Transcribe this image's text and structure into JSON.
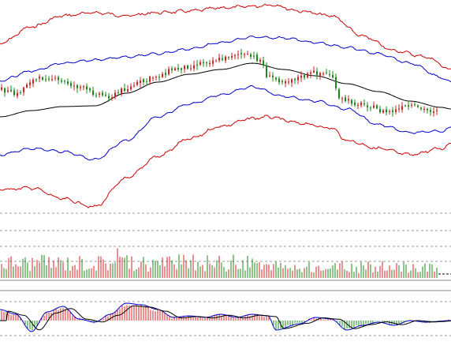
{
  "chart_data": [
    {
      "type": "candlestick",
      "panel": "price",
      "title": "",
      "grid": false,
      "colors": {
        "up": "#d42020",
        "down": "#1a8a1a",
        "ma": "#000000",
        "inner_band": "#0000cc",
        "outer_band": "#cc0000"
      },
      "price_anchor_keys": [
        [
          0,
          113
        ],
        [
          20,
          120
        ],
        [
          40,
          102
        ],
        [
          60,
          98
        ],
        [
          80,
          104
        ],
        [
          100,
          110
        ],
        [
          120,
          118
        ],
        [
          140,
          122
        ],
        [
          160,
          112
        ],
        [
          180,
          104
        ],
        [
          200,
          96
        ],
        [
          220,
          88
        ],
        [
          240,
          84
        ],
        [
          260,
          78
        ],
        [
          280,
          75
        ],
        [
          300,
          68
        ],
        [
          320,
          72
        ],
        [
          330,
          76
        ],
        [
          340,
          98
        ],
        [
          360,
          102
        ],
        [
          380,
          98
        ],
        [
          400,
          92
        ],
        [
          420,
          94
        ],
        [
          430,
          126
        ],
        [
          460,
          132
        ],
        [
          490,
          142
        ],
        [
          520,
          135
        ],
        [
          545,
          140
        ],
        [
          560,
          137
        ]
      ],
      "series": [
        {
          "kind": "moving-average",
          "values_key": "price_anchor_keys"
        },
        {
          "kind": "inner-band"
        },
        {
          "kind": "outer-band"
        }
      ]
    },
    {
      "type": "bar",
      "panel": "volume",
      "grid": true,
      "ylim": [
        0,
        50
      ]
    },
    {
      "type": "bar",
      "panel": "macd",
      "grid": false,
      "series": [
        {
          "kind": "histogram"
        },
        {
          "kind": "dif-line",
          "color": "#0000cc"
        },
        {
          "kind": "dea-line",
          "color": "#000000"
        }
      ]
    }
  ]
}
